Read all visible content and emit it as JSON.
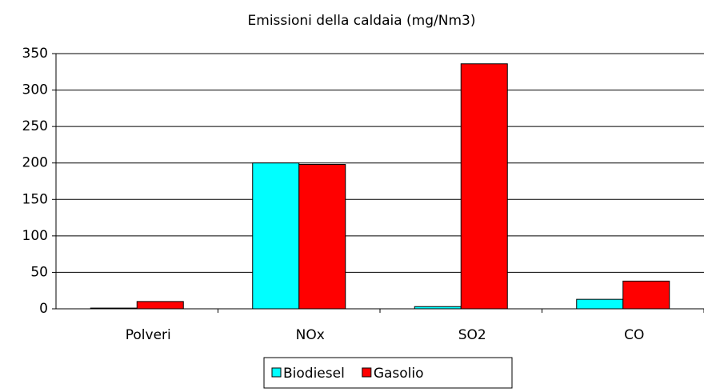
{
  "chart_data": {
    "type": "bar",
    "title": "Emissioni della caldaia (mg/Nm3)",
    "categories": [
      "Polveri",
      "NOx",
      "SO2",
      "CO"
    ],
    "series": [
      {
        "name": "Biodiesel",
        "color": "#00ffff",
        "values": [
          1,
          200,
          3,
          13
        ]
      },
      {
        "name": "Gasolio",
        "color": "#ff0000",
        "values": [
          10,
          198,
          336,
          38
        ]
      }
    ],
    "ylim": [
      0,
      350
    ],
    "yticks": [
      0,
      50,
      100,
      150,
      200,
      250,
      300,
      350
    ],
    "grid": true,
    "legend": "bottom"
  }
}
